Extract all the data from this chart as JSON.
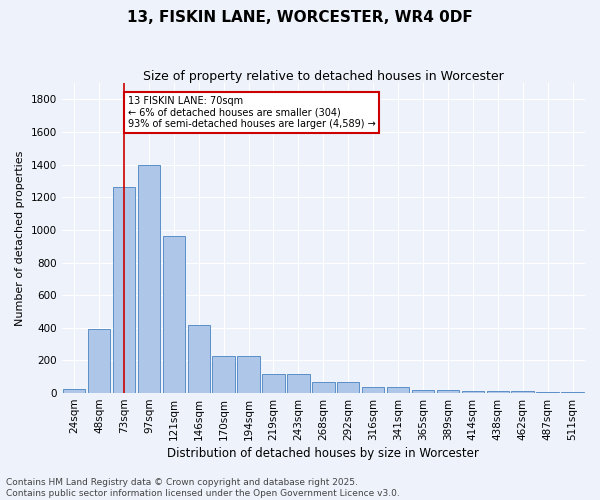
{
  "title": "13, FISKIN LANE, WORCESTER, WR4 0DF",
  "subtitle": "Size of property relative to detached houses in Worcester",
  "xlabel": "Distribution of detached houses by size in Worcester",
  "ylabel": "Number of detached properties",
  "footer_line1": "Contains HM Land Registry data © Crown copyright and database right 2025.",
  "footer_line2": "Contains public sector information licensed under the Open Government Licence v3.0.",
  "bar_labels": [
    "24sqm",
    "48sqm",
    "73sqm",
    "97sqm",
    "121sqm",
    "146sqm",
    "170sqm",
    "194sqm",
    "219sqm",
    "243sqm",
    "268sqm",
    "292sqm",
    "316sqm",
    "341sqm",
    "365sqm",
    "389sqm",
    "414sqm",
    "438sqm",
    "462sqm",
    "487sqm",
    "511sqm"
  ],
  "bar_values": [
    25,
    390,
    1260,
    1400,
    960,
    415,
    230,
    230,
    115,
    115,
    65,
    65,
    40,
    40,
    20,
    20,
    10,
    10,
    10,
    5,
    5
  ],
  "bar_color": "#aec6e8",
  "bar_edge_color": "#5b8fc9",
  "ylim": [
    0,
    1900
  ],
  "yticks": [
    0,
    200,
    400,
    600,
    800,
    1000,
    1200,
    1400,
    1600,
    1800
  ],
  "vline_x": 2.0,
  "vline_color": "#cc0000",
  "annotation_text": "13 FISKIN LANE: 70sqm\n← 6% of detached houses are smaller (304)\n93% of semi-detached houses are larger (4,589) →",
  "annotation_box_color": "#ffffff",
  "annotation_box_edge_color": "#cc0000",
  "background_color": "#eef2fa",
  "grid_color": "#ffffff",
  "title_fontsize": 11,
  "subtitle_fontsize": 9,
  "axis_label_fontsize": 8,
  "tick_fontsize": 7.5,
  "annotation_fontsize": 7,
  "footer_fontsize": 6.5
}
